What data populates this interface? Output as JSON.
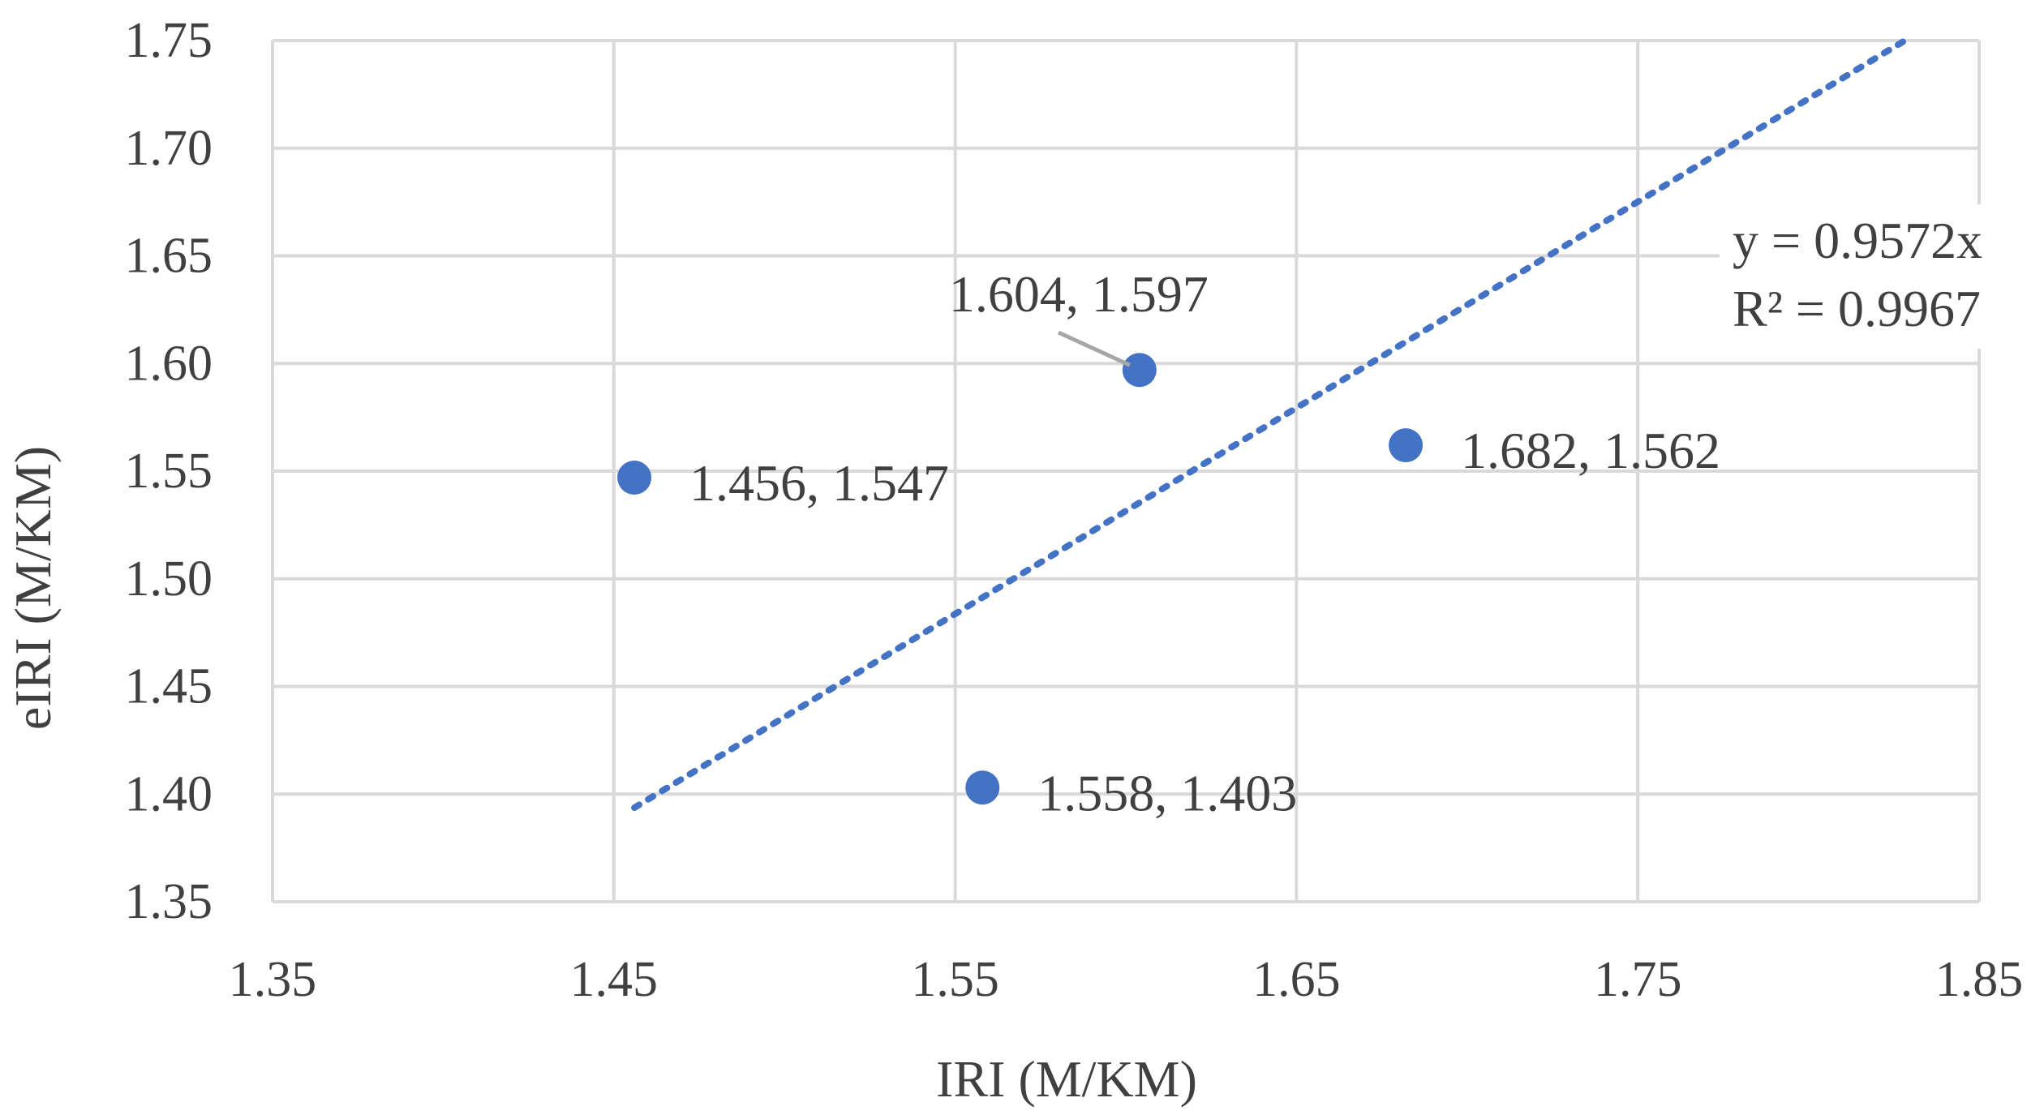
{
  "chart_data": {
    "type": "scatter",
    "title": "",
    "xlabel": "IRI (M/KM)",
    "ylabel": "eIRI (M/KM)",
    "xlim": [
      1.35,
      1.85
    ],
    "ylim": [
      1.35,
      1.75
    ],
    "x_ticks": [
      "1.35",
      "1.45",
      "1.55",
      "1.65",
      "1.75",
      "1.85"
    ],
    "y_ticks": [
      "1.35",
      "1.40",
      "1.45",
      "1.50",
      "1.55",
      "1.60",
      "1.65",
      "1.70",
      "1.75"
    ],
    "grid": true,
    "series": [
      {
        "points": [
          {
            "x": 1.456,
            "y": 1.547,
            "label": "1.456, 1.547"
          },
          {
            "x": 1.558,
            "y": 1.403,
            "label": "1.558, 1.403"
          },
          {
            "x": 1.604,
            "y": 1.597,
            "label": "1.604, 1.597"
          },
          {
            "x": 1.682,
            "y": 1.562,
            "label": "1.682, 1.562"
          }
        ],
        "color": "#4472C4"
      }
    ],
    "trendline": {
      "type": "linear-through-origin",
      "slope": 0.9572,
      "x_range": [
        1.456,
        1.828
      ],
      "style": "dotted",
      "color": "#4472C4",
      "equation": "y = 0.9572x",
      "r_squared": "R² = 0.9967"
    },
    "colors": {
      "grid": "#d9d9d9",
      "text": "#404040",
      "marker": "#4472C4",
      "leader_line": "#a6a6a6"
    }
  }
}
